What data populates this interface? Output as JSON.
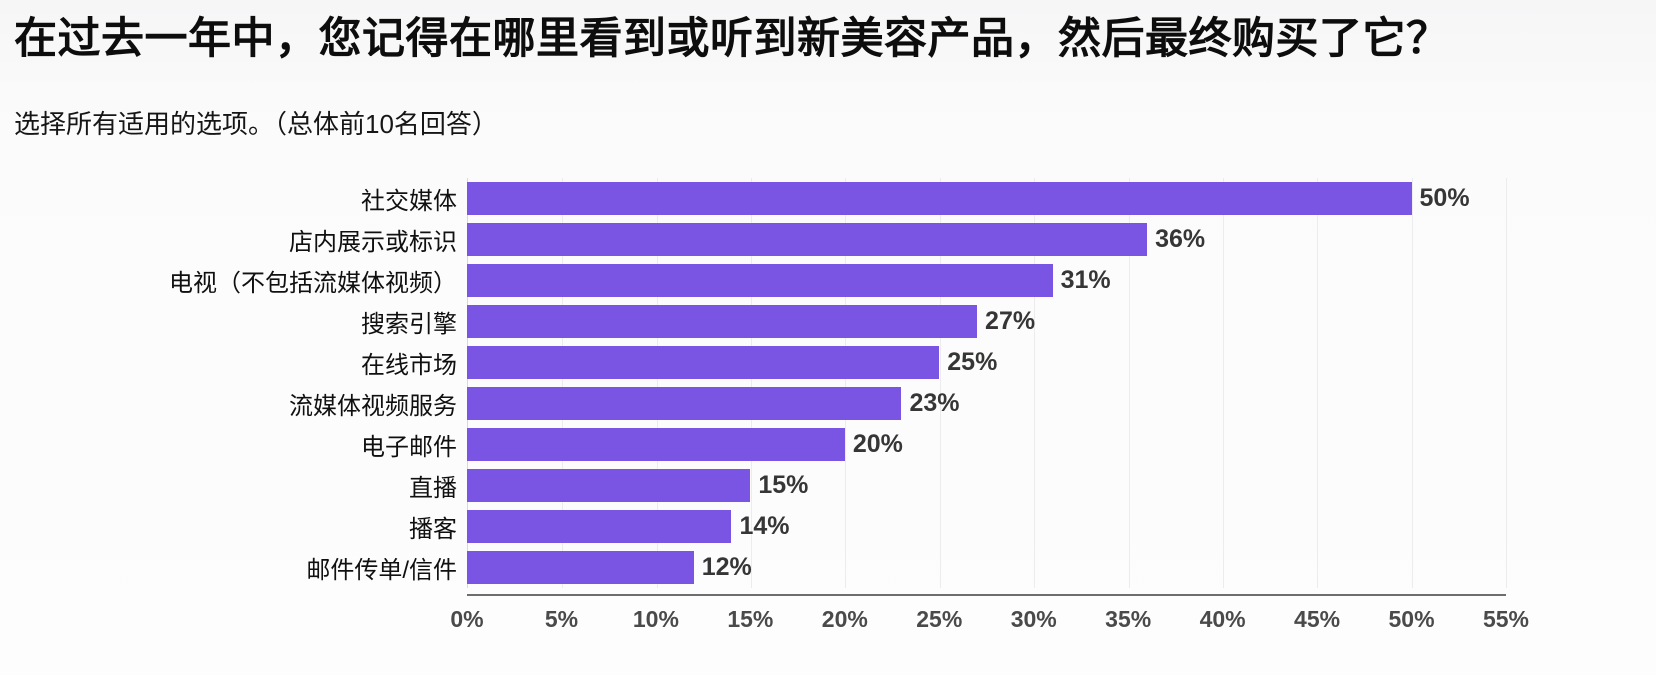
{
  "chart_data": {
    "type": "bar",
    "orientation": "horizontal",
    "title": "在过去一年中，您记得在哪里看到或听到新美容产品，然后最终购买了它？",
    "subtitle": "选择所有适用的选项。（总体前10名回答）",
    "categories": [
      "社交媒体",
      "店内展示或标识",
      "电视（不包括流媒体视频）",
      "搜索引擎",
      "在线市场",
      "流媒体视频服务",
      "电子邮件",
      "直播",
      "播客",
      "邮件传单/信件"
    ],
    "values": [
      50,
      36,
      31,
      27,
      25,
      23,
      20,
      15,
      14,
      12
    ],
    "value_labels": [
      "50%",
      "36%",
      "31%",
      "27%",
      "25%",
      "23%",
      "20%",
      "15%",
      "14%",
      "12%"
    ],
    "xlabel": "",
    "ylabel": "",
    "xlim": [
      0,
      55
    ],
    "xticks": [
      {
        "label": "0%",
        "value": 0
      },
      {
        "label": "5%",
        "value": 5
      },
      {
        "label": "10%",
        "value": 10
      },
      {
        "label": "15%",
        "value": 15
      },
      {
        "label": "20%",
        "value": 20
      },
      {
        "label": "25%",
        "value": 25
      },
      {
        "label": "30%",
        "value": 30
      },
      {
        "label": "35%",
        "value": 35
      },
      {
        "label": "40%",
        "value": 40
      },
      {
        "label": "45%",
        "value": 45
      },
      {
        "label": "50%",
        "value": 50
      },
      {
        "label": "55%",
        "value": 55
      }
    ],
    "grid": "vertical-light",
    "legend": "none",
    "bar_color": "#7a55e3",
    "gridline_color": "#ececec",
    "axis_line_color": "#6e6e6e",
    "tick_label_color": "#4a4a4a",
    "value_label_color": "#363636"
  }
}
